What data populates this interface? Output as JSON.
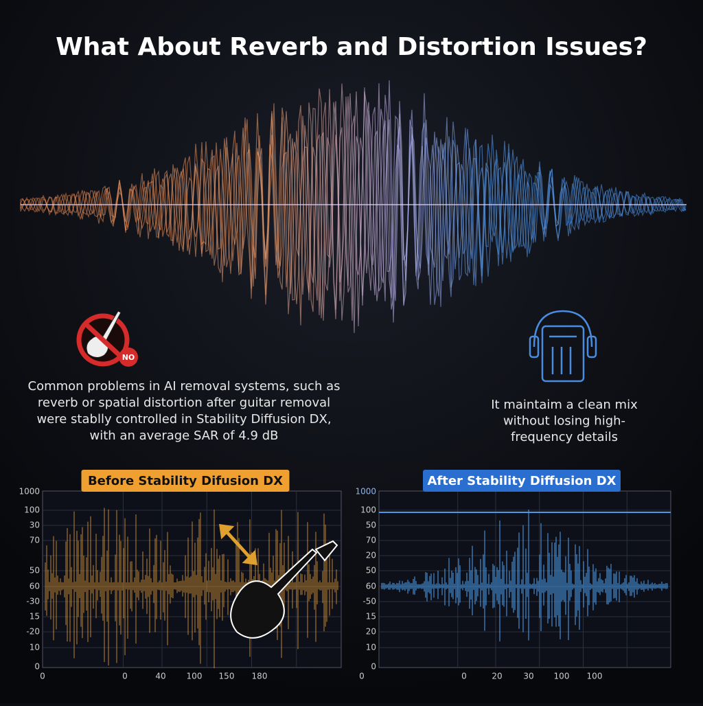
{
  "header": {
    "title": "What About Reverb and Distortion Issues?"
  },
  "left_note": {
    "badge": "NO",
    "lines": [
      "Common problems in AI removal systems, such as",
      "reverb or spatial distortion after guitar removal",
      "were stablly controlled in Stability Diffusion DX,",
      "with an average SAR of 4.9 dB"
    ]
  },
  "right_note": {
    "lines": [
      "It maintaim a clean mix",
      "without losing high-",
      "frequency details"
    ]
  },
  "panels": [
    {
      "label": "Before Stability Difusion DX",
      "y_labels": [
        "1000",
        "100",
        "30",
        "70",
        "50",
        "60",
        "-30",
        "15",
        "-20",
        "10",
        "0"
      ],
      "x_labels": [
        "0",
        "0",
        "40",
        "100",
        "150",
        "180"
      ]
    },
    {
      "label": "After Stability Diffusion DX",
      "y_labels": [
        "1000",
        "100",
        "50",
        "70",
        "20",
        "50",
        "60",
        "-50",
        "15",
        "20",
        "10",
        "0"
      ],
      "x_labels": [
        "0",
        "0",
        "20",
        "30",
        "100",
        "100"
      ]
    }
  ]
}
